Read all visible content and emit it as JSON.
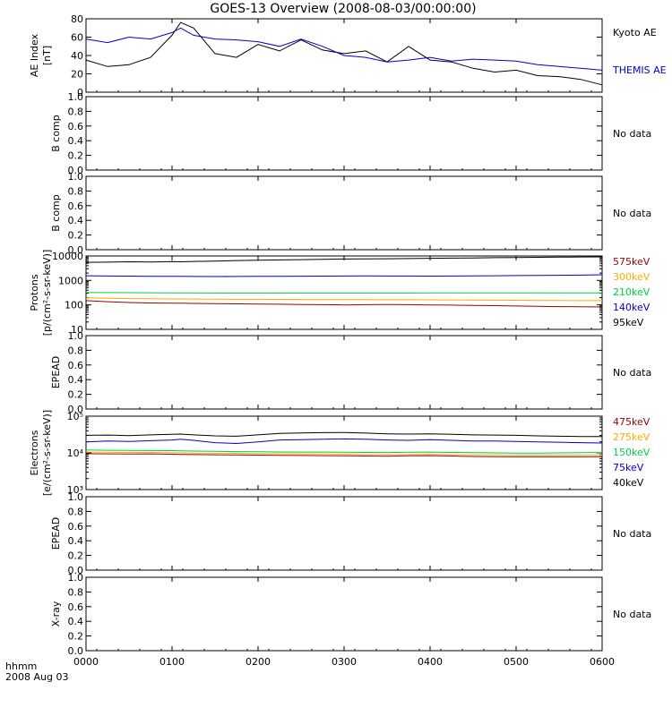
{
  "title": "GOES-13 Overview (2008-08-03/00:00:00)",
  "footer": {
    "time_label": "hhmm",
    "date_label": "2008 Aug 03"
  },
  "x_axis": {
    "ticks": [
      "0000",
      "0100",
      "0200",
      "0300",
      "0400",
      "0500",
      "0600"
    ],
    "range_hours": [
      0,
      6
    ]
  },
  "panels": [
    {
      "id": "ae",
      "ylabel_lines": [
        "AE Index",
        "[nT]"
      ],
      "yscale": "linear",
      "yrange": [
        0,
        80
      ],
      "yticks": [
        "0",
        "20",
        "40",
        "60",
        "80"
      ],
      "legend": [
        {
          "label": "Kyoto AE",
          "color": "#000000"
        },
        {
          "label": "THEMIS AE",
          "color": "#0000cc"
        }
      ]
    },
    {
      "id": "bcomp1",
      "ylabel_lines": [
        "B comp"
      ],
      "yscale": "linear",
      "yrange": [
        0,
        1
      ],
      "yticks": [
        "0.0",
        "0.2",
        "0.4",
        "0.6",
        "0.8",
        "1.0"
      ],
      "nodata": "No data"
    },
    {
      "id": "bcomp2",
      "ylabel_lines": [
        "B comp"
      ],
      "yscale": "linear",
      "yrange": [
        0,
        1
      ],
      "yticks": [
        "0.0",
        "0.2",
        "0.4",
        "0.6",
        "0.8",
        "1.0"
      ],
      "nodata": "No data"
    },
    {
      "id": "protons",
      "ylabel_lines": [
        "Protons",
        "[p/(cm²-s-sr-keV)]"
      ],
      "yscale": "log",
      "yrange": [
        10,
        10000
      ],
      "yticks": [
        "10",
        "100",
        "1000",
        "10000"
      ],
      "legend": [
        {
          "label": "575keV",
          "color": "#990000"
        },
        {
          "label": "300keV",
          "color": "#ffaa00"
        },
        {
          "label": "210keV",
          "color": "#00cc44"
        },
        {
          "label": "140keV",
          "color": "#0000cc"
        },
        {
          "label": "95keV",
          "color": "#000000"
        }
      ]
    },
    {
      "id": "epead1",
      "ylabel_lines": [
        "EPEAD"
      ],
      "yscale": "linear",
      "yrange": [
        0,
        1
      ],
      "yticks": [
        "0.0",
        "0.2",
        "0.4",
        "0.6",
        "0.8",
        "1.0"
      ],
      "nodata": "No data"
    },
    {
      "id": "electrons",
      "ylabel_lines": [
        "Electrons",
        "[e/(cm²-s-sr-keV)]"
      ],
      "yscale": "log",
      "yrange": [
        1000,
        100000
      ],
      "yticks": [
        "10³",
        "10⁴",
        "10⁵"
      ],
      "legend": [
        {
          "label": "475keV",
          "color": "#990000"
        },
        {
          "label": "275keV",
          "color": "#ffaa00"
        },
        {
          "label": "150keV",
          "color": "#00cc44"
        },
        {
          "label": "75keV",
          "color": "#0000cc"
        },
        {
          "label": "40keV",
          "color": "#000000"
        }
      ]
    },
    {
      "id": "epead2",
      "ylabel_lines": [
        "EPEAD"
      ],
      "yscale": "linear",
      "yrange": [
        0,
        1
      ],
      "yticks": [
        "0.0",
        "0.2",
        "0.4",
        "0.6",
        "0.8",
        "1.0"
      ],
      "nodata": "No data"
    },
    {
      "id": "xray",
      "ylabel_lines": [
        "X-ray"
      ],
      "yscale": "linear",
      "yrange": [
        0,
        1
      ],
      "yticks": [
        "0.0",
        "0.2",
        "0.4",
        "0.6",
        "0.8",
        "1.0"
      ],
      "nodata": "No data"
    }
  ],
  "chart_data": {
    "type": "line",
    "x": [
      0,
      0.25,
      0.5,
      0.75,
      1.0,
      1.1,
      1.25,
      1.5,
      1.75,
      2.0,
      2.25,
      2.5,
      2.75,
      3.0,
      3.25,
      3.5,
      3.75,
      4.0,
      4.25,
      4.5,
      4.75,
      5.0,
      5.25,
      5.5,
      5.75,
      6.0
    ],
    "panels": {
      "ae": {
        "series": [
          {
            "name": "Kyoto AE",
            "color": "#000000",
            "values": [
              35,
              28,
              30,
              38,
              62,
              76,
              70,
              42,
              38,
              52,
              45,
              57,
              46,
              42,
              45,
              33,
              50,
              35,
              33,
              26,
              22,
              24,
              18,
              17,
              14,
              8
            ]
          },
          {
            "name": "THEMIS AE",
            "color": "#0000cc",
            "values": [
              58,
              54,
              60,
              58,
              65,
              70,
              62,
              58,
              57,
              55,
              50,
              58,
              50,
              40,
              38,
              33,
              35,
              38,
              34,
              36,
              35,
              34,
              30,
              28,
              26,
              24
            ]
          }
        ]
      },
      "protons": {
        "series": [
          {
            "name": "575keV",
            "color": "#990000",
            "values": [
              150,
              135,
              125,
              120,
              118,
              117,
              115,
              112,
              110,
              108,
              107,
              104,
              102,
              100,
              102,
              104,
              102,
              100,
              98,
              96,
              93,
              90,
              88,
              85,
              84,
              82
            ]
          },
          {
            "name": "300keV",
            "color": "#ffaa00",
            "values": [
              195,
              188,
              182,
              178,
              176,
              175,
              174,
              172,
              170,
              169,
              168,
              167,
              166,
              165,
              164,
              163,
              162,
              161,
              160,
              158,
              156,
              154,
              152,
              151,
              150,
              150
            ]
          },
          {
            "name": "210keV",
            "color": "#00cc44",
            "values": [
              320,
              318,
              316,
              314,
              312,
              310,
              308,
              307,
              306,
              305,
              305,
              305,
              305,
              306,
              306,
              307,
              307,
              308,
              308,
              308,
              308,
              309,
              309,
              309,
              310,
              310
            ]
          },
          {
            "name": "140keV",
            "color": "#0000cc",
            "values": [
              1550,
              1520,
              1500,
              1480,
              1470,
              1460,
              1450,
              1440,
              1450,
              1470,
              1480,
              1490,
              1500,
              1520,
              1530,
              1520,
              1510,
              1500,
              1520,
              1540,
              1560,
              1580,
              1600,
              1620,
              1650,
              1700
            ]
          },
          {
            "name": "95keV",
            "color": "#000000",
            "values": [
              5500,
              5600,
              5800,
              5700,
              5900,
              5800,
              6000,
              6200,
              6500,
              6700,
              6900,
              7100,
              7300,
              7500,
              7600,
              7700,
              7800,
              8000,
              8200,
              8300,
              8500,
              8700,
              8800,
              9000,
              9100,
              9200
            ]
          }
        ]
      },
      "electrons": {
        "series": [
          {
            "name": "475keV",
            "color": "#990000",
            "values": [
              9500,
              9400,
              9300,
              9400,
              9200,
              9100,
              9000,
              8900,
              8800,
              8700,
              8600,
              8500,
              8400,
              8300,
              8200,
              8100,
              8300,
              8400,
              8200,
              8000,
              7900,
              7800,
              7800,
              7800,
              7800,
              7900
            ]
          },
          {
            "name": "275keV",
            "color": "#ffaa00",
            "values": [
              10500,
              10400,
              10300,
              10300,
              10100,
              10000,
              9900,
              9800,
              9700,
              9600,
              9500,
              9400,
              9300,
              9200,
              9100,
              9000,
              9100,
              9200,
              9000,
              8900,
              8800,
              8700,
              8700,
              8700,
              8700,
              8800
            ]
          },
          {
            "name": "150keV",
            "color": "#00cc44",
            "values": [
              12000,
              11800,
              11700,
              11600,
              11500,
              11400,
              11200,
              11000,
              10800,
              10700,
              10600,
              10500,
              10500,
              10400,
              10300,
              10200,
              10400,
              10500,
              10300,
              10100,
              10000,
              9900,
              9900,
              10000,
              10100,
              10200
            ]
          },
          {
            "name": "75keV",
            "color": "#0000cc",
            "values": [
              20000,
              21000,
              20500,
              21500,
              22500,
              23500,
              22000,
              19000,
              18000,
              20000,
              22500,
              23000,
              23500,
              24000,
              23500,
              22500,
              22000,
              23000,
              22000,
              21000,
              21000,
              20500,
              20000,
              19500,
              19000,
              18500
            ]
          },
          {
            "name": "40keV",
            "color": "#000000",
            "values": [
              30000,
              30500,
              29500,
              31000,
              32000,
              32500,
              31000,
              29000,
              28500,
              31000,
              34000,
              35000,
              35500,
              36000,
              34500,
              33000,
              32500,
              33000,
              32000,
              31000,
              30500,
              30000,
              29000,
              28500,
              28000,
              28000
            ]
          }
        ]
      }
    }
  }
}
